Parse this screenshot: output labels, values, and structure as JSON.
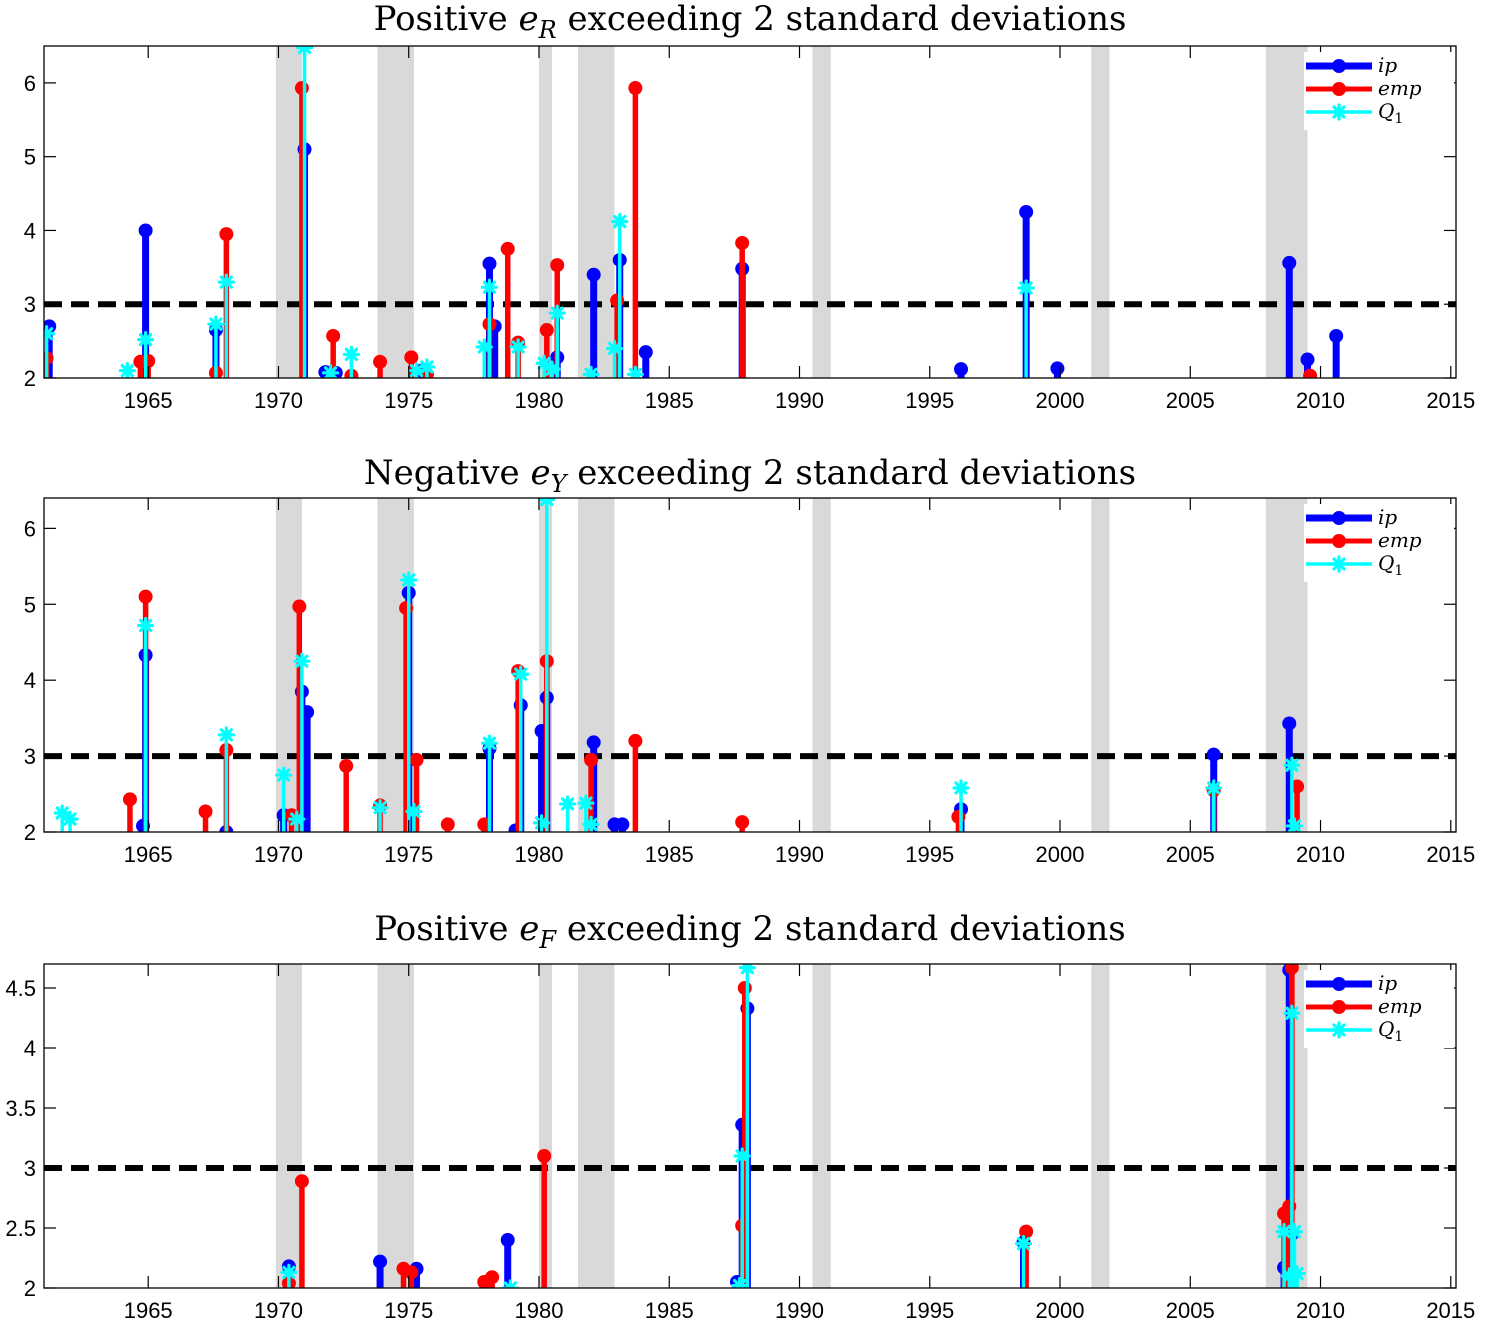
{
  "legend": {
    "placement": "top-right",
    "entries": [
      {
        "key": "ip",
        "label": "ip",
        "color": "#0000ff",
        "marker": "filled-circle"
      },
      {
        "key": "emp",
        "label": "emp",
        "color": "#ff0000",
        "marker": "filled-circle"
      },
      {
        "key": "Q1",
        "label": "Q",
        "sub": "1",
        "color": "#00ffff",
        "marker": "asterisk"
      }
    ]
  },
  "recessions": [
    [
      1969.9,
      1970.9
    ],
    [
      1973.8,
      1975.2
    ],
    [
      1980.0,
      1980.5
    ],
    [
      1981.5,
      1982.9
    ],
    [
      1990.5,
      1991.2
    ],
    [
      2001.2,
      2001.9
    ],
    [
      2007.9,
      2009.5
    ]
  ],
  "chart_data": [
    {
      "type": "stem",
      "title": "Positive e exceeding 2 standard deviations",
      "title_pre": "Positive ",
      "title_var": "e",
      "title_sub": "R",
      "title_post": " exceeding 2 standard deviations",
      "xlim": [
        1961,
        2015.2
      ],
      "ylim": [
        2,
        6.5
      ],
      "xticks": [
        1965,
        1970,
        1975,
        1980,
        1985,
        1990,
        1995,
        2000,
        2005,
        2010,
        2015
      ],
      "yticks": [
        2,
        3,
        4,
        5,
        6
      ],
      "threshold": 3,
      "grid": false,
      "series": [
        {
          "key": "ip",
          "points": [
            [
              1961.2,
              2.7
            ],
            [
              1964.9,
              4.0
            ],
            [
              1967.6,
              2.65
            ],
            [
              1971.0,
              5.1
            ],
            [
              1971.8,
              2.08
            ],
            [
              1972.2,
              2.07
            ],
            [
              1975.5,
              2.1
            ],
            [
              1978.1,
              3.55
            ],
            [
              1978.3,
              2.7
            ],
            [
              1980.7,
              2.28
            ],
            [
              1982.1,
              3.4
            ],
            [
              1983.1,
              3.6
            ],
            [
              1984.1,
              2.35
            ],
            [
              1987.8,
              3.48
            ],
            [
              1996.2,
              2.12
            ],
            [
              1998.7,
              4.25
            ],
            [
              1999.9,
              2.13
            ],
            [
              2008.8,
              3.56
            ],
            [
              2009.5,
              2.25
            ],
            [
              2010.6,
              2.57
            ]
          ]
        },
        {
          "key": "emp",
          "points": [
            [
              1961.1,
              2.27
            ],
            [
              1964.7,
              2.22
            ],
            [
              1965.0,
              2.23
            ],
            [
              1967.6,
              2.07
            ],
            [
              1968.0,
              3.95
            ],
            [
              1970.9,
              5.93
            ],
            [
              1972.1,
              2.57
            ],
            [
              1972.8,
              2.03
            ],
            [
              1973.9,
              2.22
            ],
            [
              1975.1,
              2.28
            ],
            [
              1975.7,
              2.05
            ],
            [
              1978.1,
              2.73
            ],
            [
              1978.8,
              3.75
            ],
            [
              1979.2,
              2.48
            ],
            [
              1980.3,
              2.65
            ],
            [
              1980.7,
              3.53
            ],
            [
              1983.0,
              3.05
            ],
            [
              1983.7,
              5.93
            ],
            [
              1987.8,
              3.83
            ],
            [
              2009.6,
              2.03
            ]
          ]
        },
        {
          "key": "Q1",
          "points": [
            [
              1961.1,
              2.6
            ],
            [
              1964.2,
              2.1
            ],
            [
              1964.9,
              2.52
            ],
            [
              1967.6,
              2.73
            ],
            [
              1968.0,
              3.3
            ],
            [
              1971.0,
              6.48
            ],
            [
              1972.0,
              2.07
            ],
            [
              1972.8,
              2.32
            ],
            [
              1975.3,
              2.1
            ],
            [
              1975.7,
              2.15
            ],
            [
              1977.9,
              2.42
            ],
            [
              1978.1,
              3.23
            ],
            [
              1979.2,
              2.42
            ],
            [
              1980.2,
              2.2
            ],
            [
              1980.5,
              2.12
            ],
            [
              1980.7,
              2.88
            ],
            [
              1982.0,
              2.05
            ],
            [
              1982.9,
              2.4
            ],
            [
              1983.1,
              4.12
            ],
            [
              1983.7,
              2.05
            ],
            [
              1998.7,
              3.22
            ]
          ]
        }
      ]
    },
    {
      "type": "stem",
      "title": "Negative e exceeding 2 standard deviations",
      "title_pre": "Negative ",
      "title_var": "e",
      "title_sub": "Y",
      "title_post": " exceeding 2 standard deviations",
      "xlim": [
        1961,
        2015.2
      ],
      "ylim": [
        2,
        6.4
      ],
      "xticks": [
        1965,
        1970,
        1975,
        1980,
        1985,
        1990,
        1995,
        2000,
        2005,
        2010,
        2015
      ],
      "yticks": [
        2,
        3,
        4,
        5,
        6
      ],
      "threshold": 3,
      "grid": false,
      "series": [
        {
          "key": "ip",
          "points": [
            [
              1964.8,
              2.08
            ],
            [
              1964.9,
              4.33
            ],
            [
              1968.0,
              2.0
            ],
            [
              1970.2,
              2.22
            ],
            [
              1970.9,
              3.85
            ],
            [
              1971.1,
              3.58
            ],
            [
              1975.0,
              5.15
            ],
            [
              1978.1,
              3.1
            ],
            [
              1979.1,
              2.02
            ],
            [
              1979.3,
              3.67
            ],
            [
              1980.1,
              3.33
            ],
            [
              1980.3,
              3.77
            ],
            [
              1982.1,
              3.18
            ],
            [
              1982.9,
              2.1
            ],
            [
              1983.2,
              2.1
            ],
            [
              1996.2,
              2.3
            ],
            [
              2005.9,
              3.02
            ],
            [
              2008.8,
              3.43
            ]
          ]
        },
        {
          "key": "emp",
          "points": [
            [
              1964.3,
              2.43
            ],
            [
              1964.9,
              5.1
            ],
            [
              1967.2,
              2.27
            ],
            [
              1968.0,
              3.08
            ],
            [
              1970.5,
              2.22
            ],
            [
              1970.8,
              4.97
            ],
            [
              1972.6,
              2.87
            ],
            [
              1973.9,
              2.35
            ],
            [
              1974.9,
              4.95
            ],
            [
              1975.3,
              2.95
            ],
            [
              1976.5,
              2.1
            ],
            [
              1977.9,
              2.1
            ],
            [
              1979.2,
              4.12
            ],
            [
              1980.3,
              4.25
            ],
            [
              1982.0,
              2.95
            ],
            [
              1983.7,
              3.2
            ],
            [
              1987.8,
              2.13
            ],
            [
              1996.1,
              2.2
            ],
            [
              2005.9,
              2.55
            ],
            [
              2009.1,
              2.6
            ]
          ]
        },
        {
          "key": "Q1",
          "points": [
            [
              1961.7,
              2.25
            ],
            [
              1962.0,
              2.17
            ],
            [
              1964.9,
              4.72
            ],
            [
              1968.0,
              3.28
            ],
            [
              1970.2,
              2.75
            ],
            [
              1970.7,
              2.17
            ],
            [
              1970.9,
              4.25
            ],
            [
              1973.9,
              2.32
            ],
            [
              1975.0,
              5.32
            ],
            [
              1975.2,
              2.27
            ],
            [
              1978.1,
              3.17
            ],
            [
              1979.3,
              4.08
            ],
            [
              1980.3,
              6.38
            ],
            [
              1980.1,
              2.12
            ],
            [
              1981.1,
              2.37
            ],
            [
              1981.8,
              2.38
            ],
            [
              1982.0,
              2.1
            ],
            [
              1996.2,
              2.58
            ],
            [
              2005.9,
              2.58
            ],
            [
              2008.9,
              2.88
            ],
            [
              2009.0,
              2.08
            ]
          ]
        }
      ]
    },
    {
      "type": "stem",
      "title": "Positive e exceeding 2 standard deviations",
      "title_pre": "Positive ",
      "title_var": "e",
      "title_sub": "F",
      "title_post": " exceeding 2 standard deviations",
      "xlim": [
        1961,
        2015.2
      ],
      "ylim": [
        2,
        4.7
      ],
      "xticks": [
        1965,
        1970,
        1975,
        1980,
        1985,
        1990,
        1995,
        2000,
        2005,
        2010,
        2015
      ],
      "yticks": [
        2,
        2.5,
        3,
        3.5,
        4,
        4.5
      ],
      "threshold": 3,
      "grid": false,
      "series": [
        {
          "key": "ip",
          "points": [
            [
              1970.4,
              2.18
            ],
            [
              1973.9,
              2.22
            ],
            [
              1975.3,
              2.16
            ],
            [
              1978.8,
              2.4
            ],
            [
              1987.6,
              2.05
            ],
            [
              1987.8,
              3.36
            ],
            [
              1988.0,
              4.33
            ],
            [
              1998.6,
              2.38
            ],
            [
              2008.6,
              2.17
            ],
            [
              2008.8,
              4.65
            ],
            [
              2008.9,
              2.45
            ]
          ]
        },
        {
          "key": "emp",
          "points": [
            [
              1970.4,
              2.04
            ],
            [
              1970.9,
              2.89
            ],
            [
              1974.8,
              2.16
            ],
            [
              1975.1,
              2.13
            ],
            [
              1977.9,
              2.05
            ],
            [
              1978.2,
              2.09
            ],
            [
              1980.2,
              3.1
            ],
            [
              1987.8,
              2.52
            ],
            [
              1987.9,
              4.5
            ],
            [
              1998.7,
              2.47
            ],
            [
              2008.6,
              2.62
            ],
            [
              2008.8,
              2.68
            ],
            [
              2008.9,
              4.67
            ]
          ]
        },
        {
          "key": "Q1",
          "points": [
            [
              1970.4,
              2.13
            ],
            [
              1978.9,
              2.0
            ],
            [
              1987.8,
              3.1
            ],
            [
              1988.0,
              4.67
            ],
            [
              1987.7,
              2.02
            ],
            [
              1998.6,
              2.37
            ],
            [
              2008.6,
              2.47
            ],
            [
              2008.8,
              2.1
            ],
            [
              2008.9,
              4.29
            ],
            [
              2009.0,
              2.47
            ],
            [
              2009.1,
              2.12
            ]
          ]
        }
      ]
    }
  ]
}
